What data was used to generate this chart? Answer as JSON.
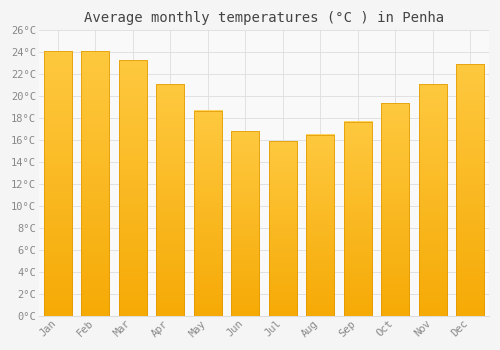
{
  "title": "Average monthly temperatures (°C ) in Penha",
  "months": [
    "Jan",
    "Feb",
    "Mar",
    "Apr",
    "May",
    "Jun",
    "Jul",
    "Aug",
    "Sep",
    "Oct",
    "Nov",
    "Dec"
  ],
  "values": [
    24.1,
    24.1,
    23.3,
    21.1,
    18.7,
    16.8,
    15.9,
    16.5,
    17.7,
    19.4,
    21.1,
    22.9
  ],
  "bar_color_top": "#FDB827",
  "bar_color_bottom": "#F5A800",
  "bar_edge_color": "#E09800",
  "background_color": "#f5f5f5",
  "plot_bg_color": "#f9f9f9",
  "grid_color": "#dddddd",
  "ylim": [
    0,
    26
  ],
  "yticks": [
    0,
    2,
    4,
    6,
    8,
    10,
    12,
    14,
    16,
    18,
    20,
    22,
    24,
    26
  ],
  "ytick_labels": [
    "0°C",
    "2°C",
    "4°C",
    "6°C",
    "8°C",
    "10°C",
    "12°C",
    "14°C",
    "16°C",
    "18°C",
    "20°C",
    "22°C",
    "24°C",
    "26°C"
  ],
  "title_fontsize": 10,
  "tick_fontsize": 7.5,
  "tick_font_color": "#888888",
  "title_color": "#444444",
  "figsize": [
    5.0,
    3.5
  ],
  "dpi": 100
}
